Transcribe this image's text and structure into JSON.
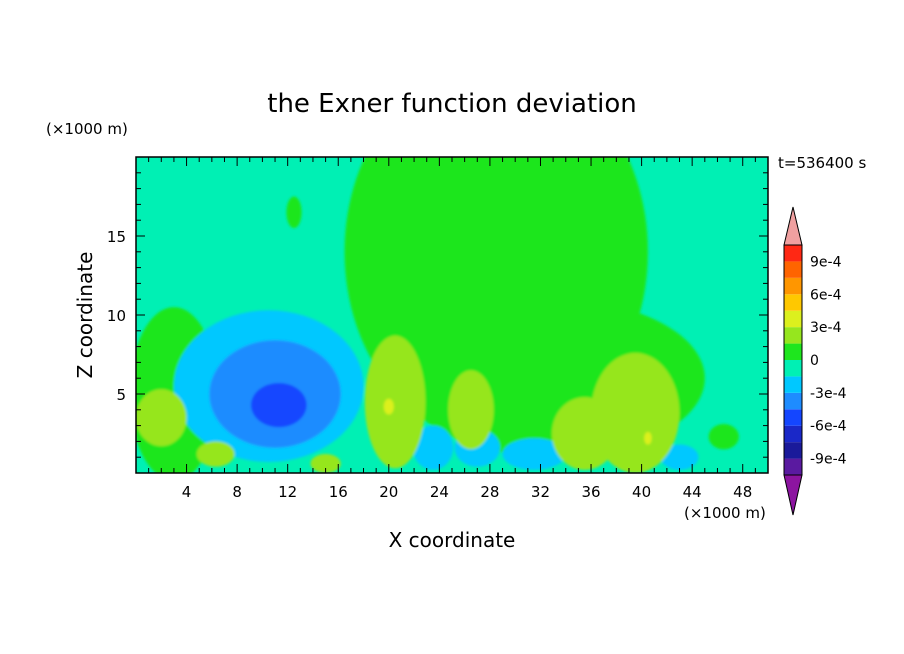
{
  "chart_data": {
    "type": "heatmap",
    "title": "the Exner function deviation",
    "xlabel": "X coordinate",
    "ylabel": "Z coordinate",
    "x_unit": "(×1000 m)",
    "y_unit": "(×1000 m)",
    "time_label": "t=536400 s",
    "xlim": [
      0,
      50
    ],
    "ylim": [
      0,
      20
    ],
    "x_ticks": [
      4,
      8,
      12,
      16,
      20,
      24,
      28,
      32,
      36,
      40,
      44,
      48
    ],
    "y_ticks": [
      5,
      10,
      15
    ],
    "colorbar": {
      "levels": [
        -0.00105,
        -0.0009,
        -0.00075,
        -0.0006,
        -0.00045,
        -0.0003,
        -0.00015,
        0,
        0.00015,
        0.0003,
        0.00045,
        0.0006,
        0.00075,
        0.0009,
        0.00105
      ],
      "colors": [
        "#5a1aa0",
        "#1a1a9a",
        "#1a28c8",
        "#1446ff",
        "#1e8cff",
        "#00c8ff",
        "#00f0b4",
        "#1ee61e",
        "#96e61e",
        "#dcf01e",
        "#ffc800",
        "#ff9600",
        "#ff6400",
        "#ff2814"
      ],
      "under_color": "#8c14a0",
      "over_color": "#f0a0a0",
      "tick_labels": [
        "9e-4",
        "6e-4",
        "3e-4",
        "0",
        "-3e-4",
        "-6e-4",
        "-9e-4"
      ],
      "tick_values": [
        0.0009,
        0.0006,
        0.0003,
        0,
        -0.0003,
        -0.0006,
        -0.0009
      ]
    },
    "field": {
      "background_value": -7e-05,
      "regions": [
        {
          "x": 28.5,
          "z": 14,
          "rx": 12,
          "rz": 12,
          "value": 7e-05
        },
        {
          "x": 24,
          "z": 13,
          "rx": 6,
          "rz": 6,
          "value": 7e-05
        },
        {
          "x": 33,
          "z": 6,
          "rx": 12,
          "rz": 5,
          "value": 7e-05
        },
        {
          "x": 12.5,
          "z": 16.5,
          "rx": 0.6,
          "rz": 1.0,
          "value": 7e-05
        },
        {
          "x": 3,
          "z": 5,
          "rx": 3.5,
          "rz": 5.5,
          "value": 7e-05
        },
        {
          "x": 10.5,
          "z": 5.5,
          "rx": 7.5,
          "rz": 4.8,
          "value": -0.0002
        },
        {
          "x": 11,
          "z": 5,
          "rx": 5.2,
          "rz": 3.4,
          "value": -0.0004
        },
        {
          "x": 11.3,
          "z": 4.3,
          "rx": 2.2,
          "rz": 1.4,
          "value": -0.00055
        },
        {
          "x": 23.5,
          "z": 1.6,
          "rx": 1.6,
          "rz": 1.4,
          "value": -0.0002
        },
        {
          "x": 27,
          "z": 1.6,
          "rx": 1.8,
          "rz": 1.2,
          "value": -0.0002
        },
        {
          "x": 31.5,
          "z": 1.2,
          "rx": 2.5,
          "rz": 1.0,
          "value": -0.0002
        },
        {
          "x": 43,
          "z": 1.0,
          "rx": 1.5,
          "rz": 0.8,
          "value": -0.0002
        },
        {
          "x": 20.5,
          "z": 4.5,
          "rx": 2.4,
          "rz": 4.2,
          "value": 0.0002
        },
        {
          "x": 26.5,
          "z": 4.0,
          "rx": 1.8,
          "rz": 2.5,
          "value": 0.0002
        },
        {
          "x": 39.5,
          "z": 3.8,
          "rx": 3.5,
          "rz": 3.8,
          "value": 0.0002
        },
        {
          "x": 35.5,
          "z": 2.5,
          "rx": 2.6,
          "rz": 2.3,
          "value": 0.0002
        },
        {
          "x": 2.0,
          "z": 3.5,
          "rx": 2.0,
          "rz": 1.8,
          "value": 0.0002
        },
        {
          "x": 6.3,
          "z": 1.2,
          "rx": 1.5,
          "rz": 0.8,
          "value": 0.0002
        },
        {
          "x": 15,
          "z": 0.6,
          "rx": 1.2,
          "rz": 0.6,
          "value": 0.0002
        },
        {
          "x": 46.5,
          "z": 2.3,
          "rx": 1.2,
          "rz": 0.8,
          "value": 7e-05
        },
        {
          "x": 20,
          "z": 4.2,
          "rx": 0.4,
          "rz": 0.5,
          "value": 0.00035
        },
        {
          "x": 40.5,
          "z": 2.2,
          "rx": 0.3,
          "rz": 0.4,
          "value": 0.00035
        }
      ]
    }
  }
}
